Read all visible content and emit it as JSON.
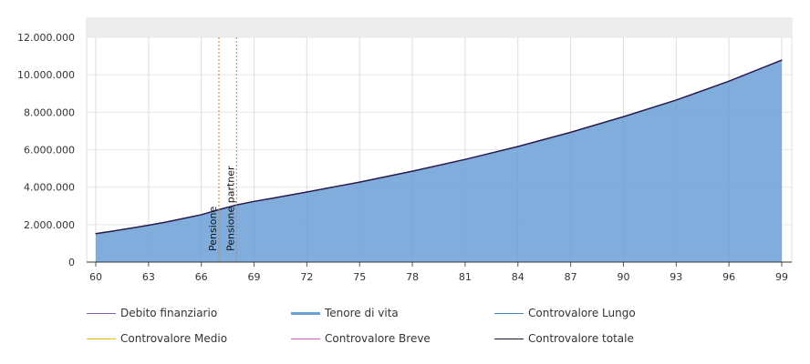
{
  "chart_data": {
    "type": "area",
    "x_ticks": [
      "60",
      "63",
      "66",
      "69",
      "72",
      "75",
      "78",
      "81",
      "84",
      "87",
      "90",
      "93",
      "96",
      "99"
    ],
    "y_ticks": [
      "0",
      "2.000.000",
      "4.000.000",
      "6.000.000",
      "8.000.000",
      "10.000.000",
      "12.000.000"
    ],
    "xlim": [
      59.9,
      99
    ],
    "ylim": [
      0,
      12000000
    ],
    "grid": true,
    "legend_position": "bottom",
    "annotations": [
      {
        "label": "Pensione",
        "x": 67,
        "color": "#d9822b"
      },
      {
        "label": "Pensione partner",
        "x": 68,
        "color": "#d9822b"
      }
    ],
    "series": [
      {
        "name": "Controvalore totale",
        "color": "#6a9fd6",
        "x": [
          60,
          61,
          62,
          63,
          64,
          65,
          66,
          67,
          68,
          69,
          70,
          72,
          75,
          78,
          81,
          84,
          87,
          90,
          93,
          96,
          99
        ],
        "y": [
          1520000,
          1660000,
          1810000,
          1970000,
          2140000,
          2330000,
          2530000,
          2800000,
          3050000,
          3240000,
          3400000,
          3740000,
          4270000,
          4850000,
          5480000,
          6170000,
          6930000,
          7760000,
          8650000,
          9660000,
          10780000
        ]
      }
    ]
  },
  "legend": [
    {
      "label": "Debito finanziario",
      "color": "#7b5fb0",
      "thickness": 1
    },
    {
      "label": "Tenore di vita",
      "color": "#6a9fd6",
      "thickness": 3
    },
    {
      "label": "Controvalore Lungo",
      "color": "#3a86c4",
      "thickness": 1
    },
    {
      "label": "Controvalore Medio",
      "color": "#e8b800",
      "thickness": 1
    },
    {
      "label": "Controvalore Breve",
      "color": "#c35fbf",
      "thickness": 1
    },
    {
      "label": "Controvalore totale",
      "color": "#1a1a2e",
      "thickness": 1
    }
  ]
}
